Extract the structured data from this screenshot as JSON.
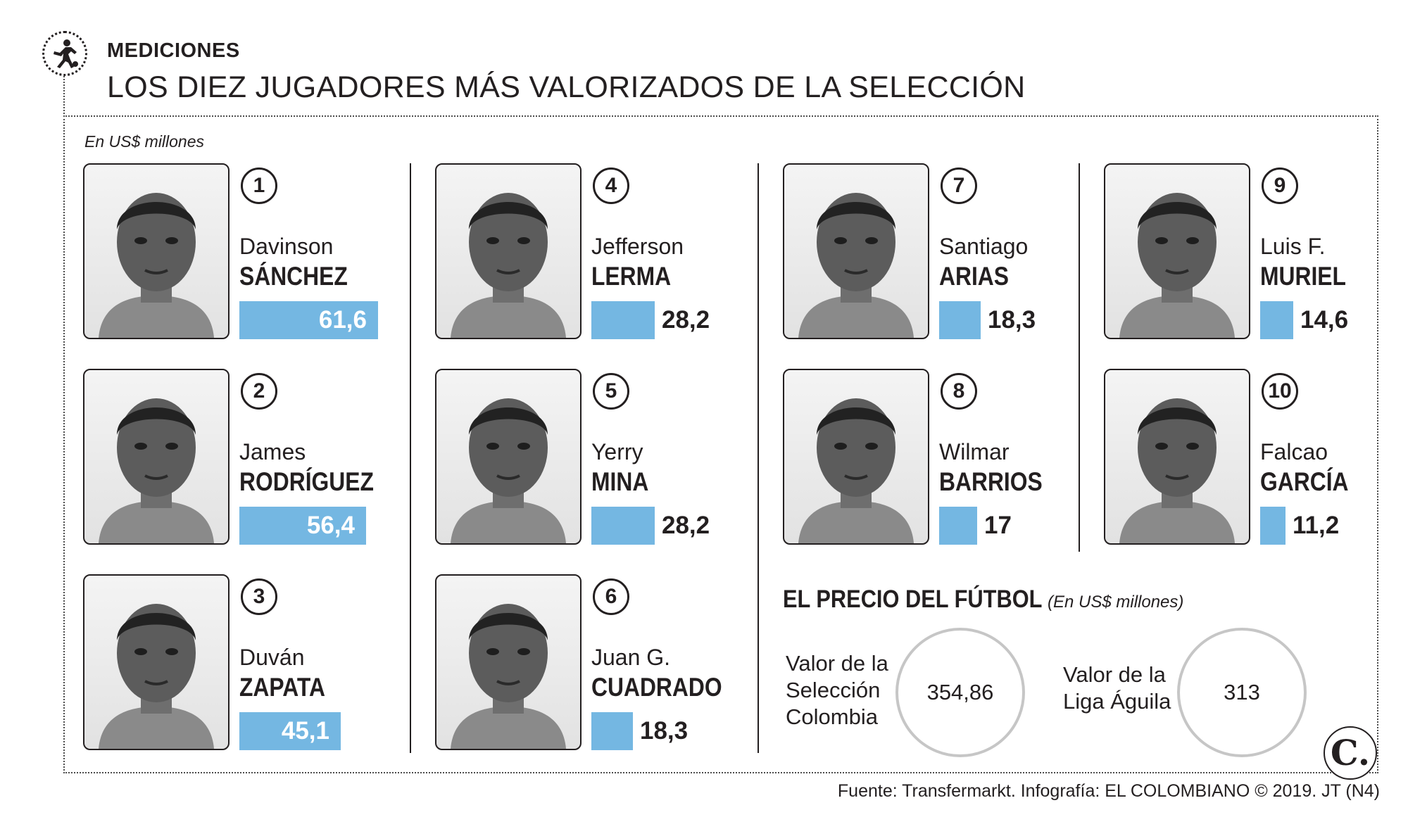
{
  "header": {
    "section": "MEDICIONES",
    "title": "LOS DIEZ JUGADORES MÁS VALORIZADOS DE LA SELECCIÓN",
    "unit": "En US$ millones"
  },
  "chart_data": {
    "type": "bar",
    "categories": [
      "SÁNCHEZ",
      "RODRÍGUEZ",
      "ZAPATA",
      "LERMA",
      "MINA",
      "CUADRADO",
      "ARIAS",
      "BARRIOS",
      "MURIEL",
      "GARCÍA"
    ],
    "values": [
      61.6,
      56.4,
      45.1,
      28.2,
      28.2,
      18.3,
      18.3,
      17,
      14.6,
      11.2
    ],
    "unit": "En US$ millones",
    "players": [
      {
        "rank": "1",
        "first": "Davinson",
        "last": "SÁNCHEZ",
        "value": 61.6,
        "label": "61,6"
      },
      {
        "rank": "2",
        "first": "James",
        "last": "RODRÍGUEZ",
        "value": 56.4,
        "label": "56,4"
      },
      {
        "rank": "3",
        "first": "Duván",
        "last": "ZAPATA",
        "value": 45.1,
        "label": "45,1"
      },
      {
        "rank": "4",
        "first": "Jefferson",
        "last": "LERMA",
        "value": 28.2,
        "label": "28,2"
      },
      {
        "rank": "5",
        "first": "Yerry",
        "last": "MINA",
        "value": 28.2,
        "label": "28,2"
      },
      {
        "rank": "6",
        "first": "Juan G.",
        "last": "CUADRADO",
        "value": 18.3,
        "label": "18,3"
      },
      {
        "rank": "7",
        "first": "Santiago",
        "last": "ARIAS",
        "value": 18.3,
        "label": "18,3"
      },
      {
        "rank": "8",
        "first": "Wilmar",
        "last": "BARRIOS",
        "value": 17,
        "label": "17"
      },
      {
        "rank": "9",
        "first": "Luis F.",
        "last": "MURIEL",
        "value": 14.6,
        "label": "14,6"
      },
      {
        "rank": "10",
        "first": "Falcao",
        "last": "GARCÍA",
        "value": 11.2,
        "label": "11,2"
      }
    ],
    "bar_color": "#74b7e2"
  },
  "price": {
    "title": "EL PRECIO DEL FÚTBOL",
    "unit": "(En US$ millones)",
    "items": [
      {
        "label_lines": [
          "Valor de la",
          "Selección",
          "Colombia"
        ],
        "value": "354,86"
      },
      {
        "label_lines": [
          "Valor de la",
          "Liga Águila"
        ],
        "value": "313"
      }
    ]
  },
  "brand": "C.",
  "source": "Fuente: Transfermarkt. Infografía: EL COLOMBIANO © 2019. JT (N4)"
}
